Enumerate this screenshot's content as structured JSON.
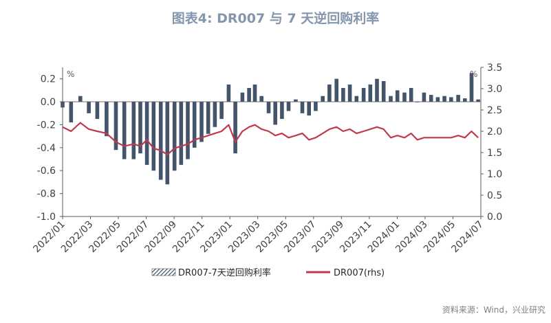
{
  "page": {
    "title": "图表4:   DR007 与 7 天逆回购利率",
    "source": "资料来源：Wind，兴业研究"
  },
  "colors": {
    "spread_bars": "#44546a",
    "dr007_line": "#c0394b",
    "axis": "#595959",
    "title": "#8496ad"
  },
  "chart_data": {
    "type": "bar+line",
    "x_tick_labels": [
      "2022/01",
      "2022/03",
      "2022/05",
      "2022/07",
      "2022/09",
      "2022/11",
      "2023/01",
      "2023/03",
      "2023/05",
      "2023/07",
      "2023/09",
      "2023/11",
      "2024/01",
      "2024/03",
      "2024/05",
      "2024/07"
    ],
    "x_range": [
      "2022-01-01",
      "2024-07-31"
    ],
    "y_left": {
      "range": [
        -1.0,
        0.3
      ],
      "ticks": [
        "0.2",
        "0.0",
        "-0.2",
        "-0.4",
        "-0.6",
        "-0.8",
        "-1.0"
      ],
      "unit": "%"
    },
    "y_right": {
      "range": [
        0.0,
        3.5
      ],
      "ticks": [
        "3.5",
        "3.0",
        "2.5",
        "2.0",
        "1.5",
        "1.0",
        "0.5",
        "0.0"
      ],
      "unit": "%"
    },
    "legend": {
      "placement": "bottom"
    },
    "series": [
      {
        "name": "DR007-7天逆回购利率",
        "type": "bar",
        "axis": "left",
        "x": [
          "2022-01-01",
          "2022-01-20",
          "2022-02-10",
          "2022-03-01",
          "2022-03-20",
          "2022-04-10",
          "2022-05-01",
          "2022-05-20",
          "2022-06-10",
          "2022-06-25",
          "2022-07-10",
          "2022-07-25",
          "2022-08-10",
          "2022-08-25",
          "2022-09-10",
          "2022-09-25",
          "2022-10-10",
          "2022-10-25",
          "2022-11-10",
          "2022-11-25",
          "2022-12-10",
          "2022-12-25",
          "2023-01-10",
          "2023-01-25",
          "2023-02-10",
          "2023-02-25",
          "2023-03-10",
          "2023-03-25",
          "2023-04-10",
          "2023-04-25",
          "2023-05-10",
          "2023-05-25",
          "2023-06-10",
          "2023-06-25",
          "2023-07-10",
          "2023-07-25",
          "2023-08-10",
          "2023-08-25",
          "2023-09-10",
          "2023-09-25",
          "2023-10-10",
          "2023-10-25",
          "2023-11-10",
          "2023-11-25",
          "2023-12-10",
          "2023-12-25",
          "2024-01-10",
          "2024-01-25",
          "2024-02-10",
          "2024-02-25",
          "2024-03-10",
          "2024-03-25",
          "2024-04-10",
          "2024-04-25",
          "2024-05-10",
          "2024-05-25",
          "2024-06-10",
          "2024-06-25",
          "2024-07-10",
          "2024-07-25"
        ],
        "values": [
          -0.05,
          -0.18,
          0.05,
          -0.1,
          -0.15,
          -0.3,
          -0.42,
          -0.5,
          -0.5,
          -0.45,
          -0.55,
          -0.6,
          -0.68,
          -0.72,
          -0.6,
          -0.55,
          -0.5,
          -0.4,
          -0.35,
          -0.28,
          -0.22,
          -0.15,
          0.15,
          -0.45,
          0.08,
          0.12,
          0.15,
          0.05,
          -0.1,
          -0.2,
          -0.15,
          -0.08,
          0.02,
          -0.1,
          -0.12,
          -0.08,
          0.05,
          0.15,
          0.2,
          0.12,
          0.15,
          0.05,
          0.12,
          0.15,
          0.2,
          0.18,
          0.05,
          0.1,
          0.08,
          0.12,
          0.0,
          0.08,
          0.06,
          0.04,
          0.05,
          0.04,
          0.06,
          0.03,
          0.25,
          0.02
        ]
      },
      {
        "name": "DR007(rhs)",
        "type": "line",
        "axis": "right",
        "x": [
          "2022-01-01",
          "2022-01-20",
          "2022-02-10",
          "2022-03-01",
          "2022-03-20",
          "2022-04-10",
          "2022-05-01",
          "2022-05-20",
          "2022-06-10",
          "2022-06-25",
          "2022-07-10",
          "2022-07-25",
          "2022-08-10",
          "2022-08-25",
          "2022-09-10",
          "2022-09-25",
          "2022-10-10",
          "2022-10-25",
          "2022-11-10",
          "2022-11-25",
          "2022-12-10",
          "2022-12-25",
          "2023-01-10",
          "2023-01-25",
          "2023-02-10",
          "2023-02-25",
          "2023-03-10",
          "2023-03-25",
          "2023-04-10",
          "2023-04-25",
          "2023-05-10",
          "2023-05-25",
          "2023-06-10",
          "2023-06-25",
          "2023-07-10",
          "2023-07-25",
          "2023-08-10",
          "2023-08-25",
          "2023-09-10",
          "2023-09-25",
          "2023-10-10",
          "2023-10-25",
          "2023-11-10",
          "2023-11-25",
          "2023-12-10",
          "2023-12-25",
          "2024-01-10",
          "2024-01-25",
          "2024-02-10",
          "2024-02-25",
          "2024-03-10",
          "2024-03-25",
          "2024-04-10",
          "2024-04-25",
          "2024-05-10",
          "2024-05-25",
          "2024-06-10",
          "2024-06-25",
          "2024-07-10",
          "2024-07-25"
        ],
        "values": [
          2.1,
          2.0,
          2.2,
          2.05,
          2.0,
          1.95,
          1.75,
          1.65,
          1.7,
          1.65,
          1.8,
          1.6,
          1.55,
          1.45,
          1.6,
          1.65,
          1.7,
          1.8,
          1.85,
          1.9,
          1.95,
          2.0,
          2.15,
          1.75,
          2.0,
          2.1,
          2.15,
          2.05,
          2.0,
          1.9,
          1.95,
          1.85,
          1.9,
          1.95,
          1.8,
          1.85,
          1.95,
          2.05,
          2.1,
          2.0,
          2.05,
          1.95,
          2.0,
          2.05,
          2.1,
          2.05,
          1.85,
          1.9,
          1.85,
          1.95,
          1.8,
          1.85,
          1.85,
          1.85,
          1.85,
          1.85,
          1.9,
          1.85,
          2.0,
          1.85
        ]
      }
    ]
  }
}
